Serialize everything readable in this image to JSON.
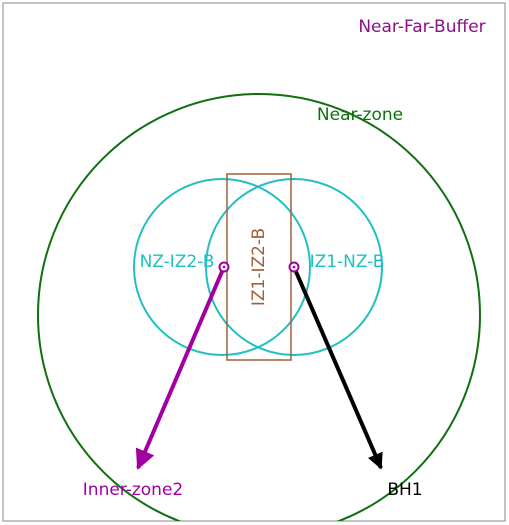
{
  "zones": [
    {
      "label": "Near-Far-Buffer"
    },
    {
      "label": "Near-zone"
    },
    {
      "label": "NZ-IZ2-B"
    },
    {
      "label": "IZ1-NZ-B"
    },
    {
      "label": "IZ1-IZ2-B"
    }
  ],
  "points": [
    {
      "label": "Inner-zone2"
    },
    {
      "label": "BH1"
    }
  ]
}
